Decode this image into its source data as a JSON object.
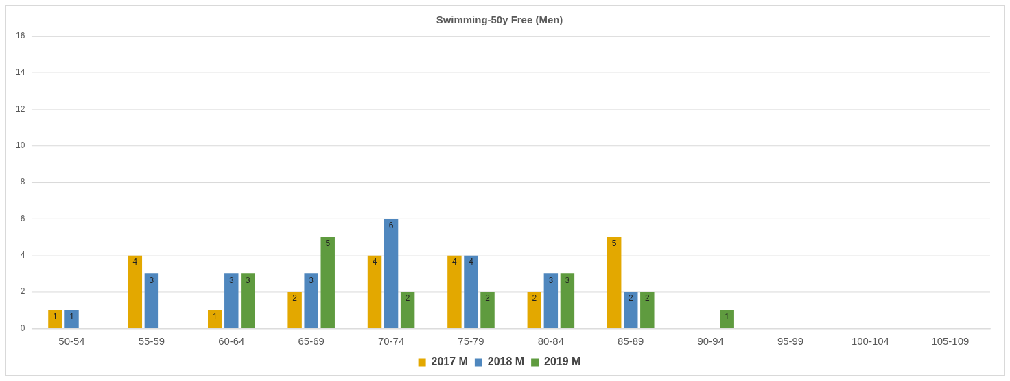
{
  "chart_data": {
    "type": "bar",
    "title": "Swimming-50y Free (Men)",
    "categories": [
      "50-54",
      "55-59",
      "60-64",
      "65-69",
      "70-74",
      "75-79",
      "80-84",
      "85-89",
      "90-94",
      "95-99",
      "100-104",
      "105-109"
    ],
    "series": [
      {
        "name": "2017 M",
        "color": "#e3a800",
        "values": [
          1,
          4,
          1,
          2,
          4,
          4,
          2,
          5,
          null,
          null,
          null,
          null
        ]
      },
      {
        "name": "2018 M",
        "color": "#4f87be",
        "values": [
          1,
          3,
          3,
          3,
          6,
          4,
          3,
          2,
          null,
          null,
          null,
          null
        ]
      },
      {
        "name": "2019 M",
        "color": "#5f9b3f",
        "values": [
          null,
          null,
          3,
          5,
          2,
          2,
          3,
          2,
          1,
          null,
          null,
          null
        ]
      }
    ],
    "ylim": [
      0,
      16
    ],
    "yticks": [
      0,
      2,
      4,
      6,
      8,
      10,
      12,
      14,
      16
    ],
    "grid": "y",
    "legend": "bottom",
    "data_labels": true
  }
}
